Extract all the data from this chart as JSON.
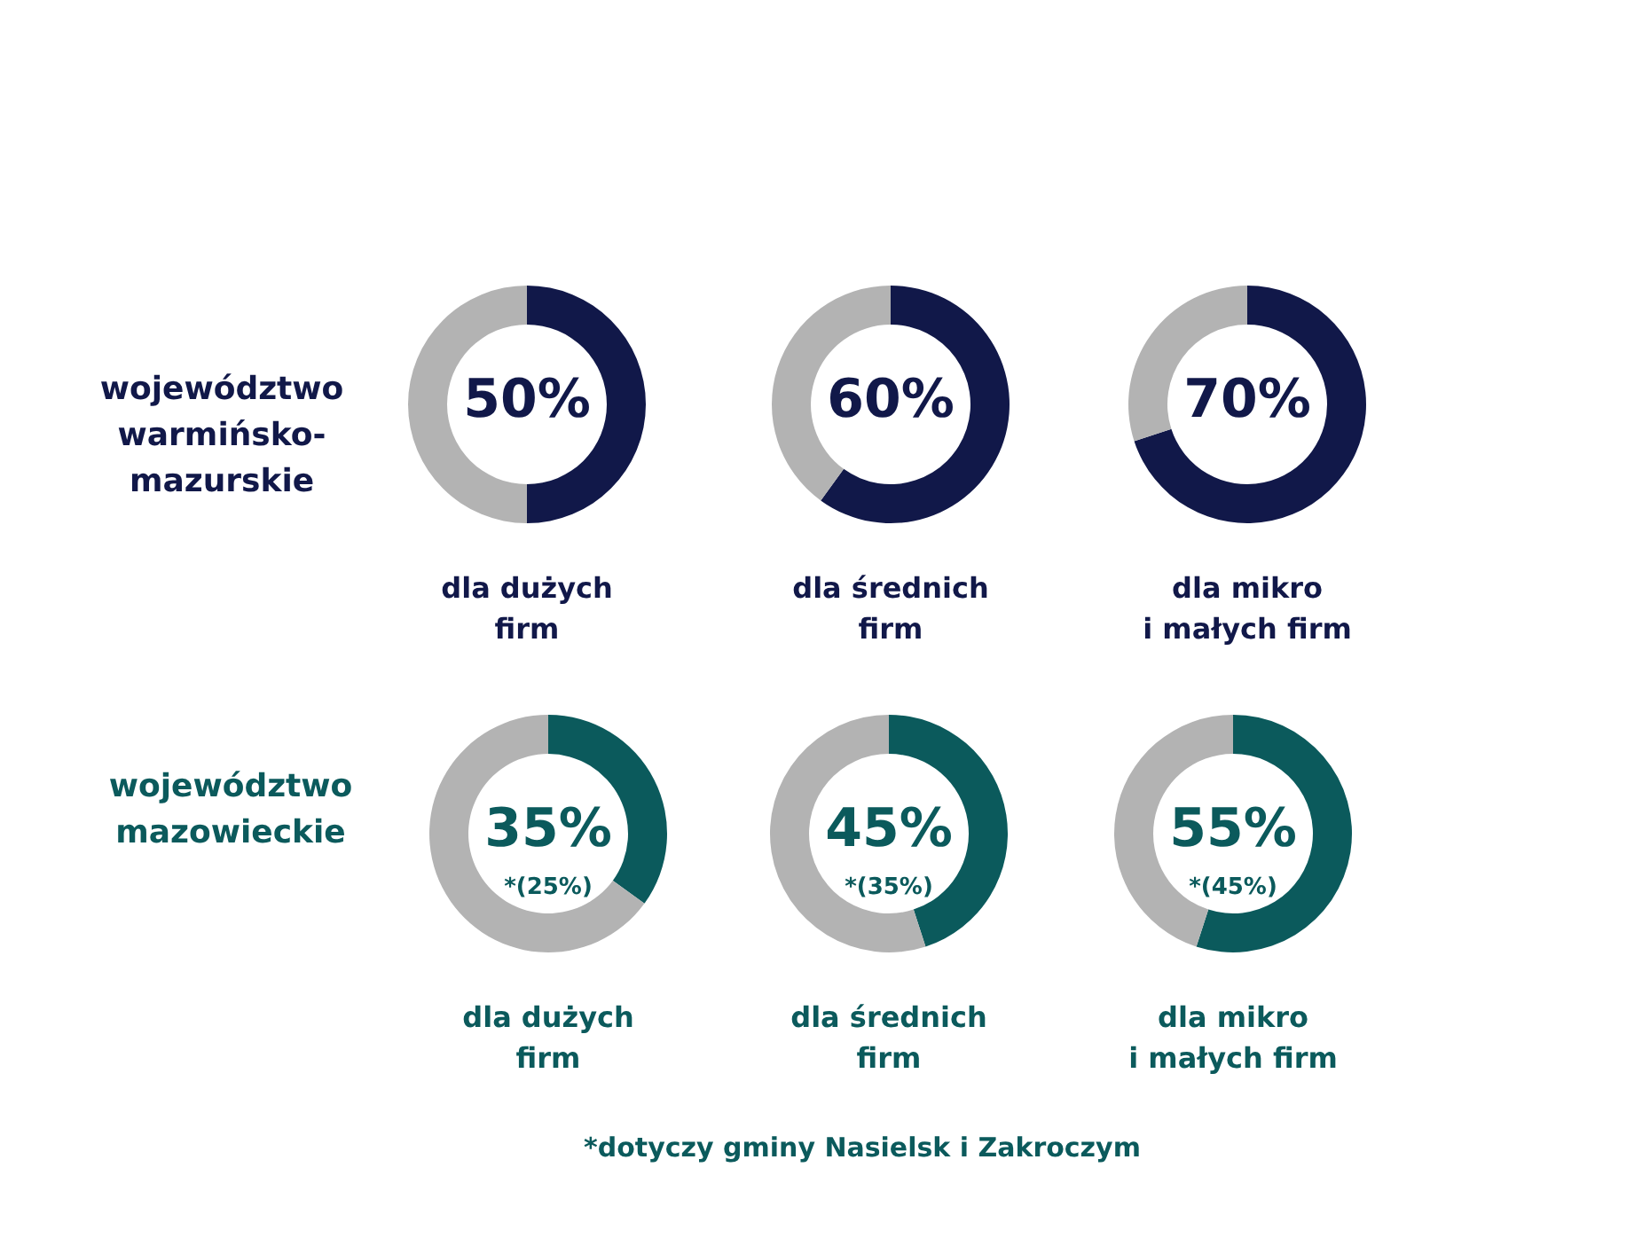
{
  "chart_data": [
    {
      "type": "donut",
      "ylabel": "województwo\nwarmińsko-\nmazurskie",
      "xlabel": "dla dużych\nfirm",
      "categories": [
        null,
        null
      ],
      "values": [
        50,
        50
      ],
      "colors": [
        "#111849",
        "#b3b3b3"
      ],
      "value_labels": [
        "50%",
        null
      ]
    },
    {
      "type": "donut",
      "xlabel": "dla średnich\nfirm",
      "categories": [
        null,
        null
      ],
      "values": [
        60,
        40
      ],
      "colors": [
        "#111849",
        "#b3b3b3"
      ],
      "value_labels": [
        "60%",
        null
      ]
    },
    {
      "type": "donut",
      "xlabel": "dla mikro\ni małych firm",
      "categories": [
        null,
        null
      ],
      "values": [
        70,
        30
      ],
      "colors": [
        "#111849",
        "#b3b3b3"
      ],
      "value_labels": [
        "70%",
        null
      ]
    },
    {
      "type": "donut",
      "ylabel": "województwo\nmazowieckie",
      "xlabel": "dla dużych\nfirm",
      "categories": [
        null,
        null
      ],
      "values": [
        35,
        65
      ],
      "colors": [
        "#0b5a5c",
        "#b3b3b3"
      ],
      "value_labels": [
        "35%",
        null
      ],
      "annotations": [
        "*(25%)"
      ]
    },
    {
      "type": "donut",
      "xlabel": "dla średnich\nfirm",
      "categories": [
        null,
        null
      ],
      "values": [
        45,
        55
      ],
      "colors": [
        "#0b5a5c",
        "#b3b3b3"
      ],
      "value_labels": [
        "45%",
        null
      ],
      "annotations": [
        "*(35%)",
        "*dotyczy gminy Nasielsk i Zakroczym"
      ]
    },
    {
      "type": "donut",
      "xlabel": "dla mikro\ni małych firm",
      "categories": [
        null,
        null
      ],
      "values": [
        55,
        45
      ],
      "colors": [
        "#0b5a5c",
        "#b3b3b3"
      ],
      "value_labels": [
        "55%",
        null
      ],
      "annotations": [
        "*(45%)"
      ]
    }
  ]
}
